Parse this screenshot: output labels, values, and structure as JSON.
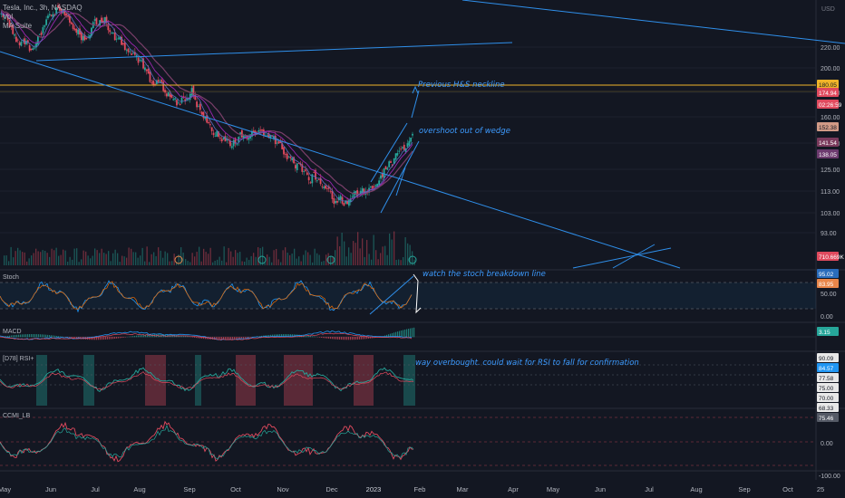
{
  "chart_data": [
    {
      "type": "candlestick",
      "symbol_title": "Tesla, Inc., 3h, NASDAQ",
      "legend": [
        "Vol",
        "MA Suite"
      ],
      "currency": "USD",
      "y_ticks": [
        "220.00",
        "200.00",
        "180.00",
        "160.00",
        "140.00",
        "125.00",
        "113.00",
        "103.00",
        "93.00"
      ],
      "price_tags": [
        {
          "label": "180.05",
          "bg": "#f0b429",
          "fg": "#131722"
        },
        {
          "label": "174.94",
          "bg": "#e04a5e",
          "fg": "#ffffff"
        },
        {
          "label": "02:26:59",
          "bg": "#e04a5e",
          "fg": "#ffffff"
        },
        {
          "label": "152.38",
          "bg": "#d19a86",
          "fg": "#131722"
        },
        {
          "label": "141.54",
          "bg": "#7a3a5c",
          "fg": "#ffffff"
        },
        {
          "label": "138.05",
          "bg": "#6c3a6e",
          "fg": "#ffffff"
        },
        {
          "label": "710.669K",
          "bg": "#e04a5e",
          "fg": "#ffffff"
        }
      ],
      "horizontal_level": 180.05,
      "annotations": [
        "Previous H&S neckline",
        "overshoot out of wedge"
      ],
      "close_series": [
        290,
        282,
        268,
        265,
        262,
        270,
        281,
        292,
        300,
        297,
        287,
        279,
        272,
        278,
        286,
        290,
        280,
        270,
        262,
        253,
        250,
        242,
        230,
        228,
        220,
        214,
        209,
        214,
        220,
        205,
        193,
        183,
        176,
        170,
        168,
        172,
        175,
        180,
        182,
        178,
        172,
        165,
        158,
        152,
        146,
        140,
        134,
        128,
        123,
        117,
        111,
        108,
        112,
        118,
        122,
        128,
        134,
        142,
        150,
        158,
        166,
        175
      ]
    },
    {
      "type": "line",
      "indicator": "Stoch",
      "y_ticks": [
        "95.02",
        "83.95",
        "50.00",
        "0.00"
      ],
      "annotation": "watch the stoch breakdown line"
    },
    {
      "type": "line",
      "indicator": "MACD",
      "y_ticks": [
        "3.15"
      ]
    },
    {
      "type": "line",
      "indicator": "[D78] RSI+",
      "y_ticks": [
        "90.09",
        "84.57",
        "77.58",
        "75.00",
        "70.00",
        "68.33"
      ],
      "annotation": "way overbought. could wait for RSI to fall for confirmation"
    },
    {
      "type": "line",
      "indicator": "CCMI_LB",
      "y_ticks": [
        "75.46",
        "0.00",
        "-100.00"
      ]
    }
  ],
  "x_axis": [
    "May",
    "Jun",
    "Jul",
    "Aug",
    "Sep",
    "Oct",
    "Nov",
    "Dec",
    "2023",
    "Feb",
    "Mar",
    "Apr",
    "May",
    "Jun",
    "Jul",
    "Aug",
    "Sep",
    "Oct",
    "25"
  ],
  "colors": {
    "background": "#131722",
    "up": "#26a69a",
    "down": "#e04a5e",
    "trendline": "#2f8fea",
    "neckline": "#f0b429",
    "annotation": "#3d9bff"
  }
}
